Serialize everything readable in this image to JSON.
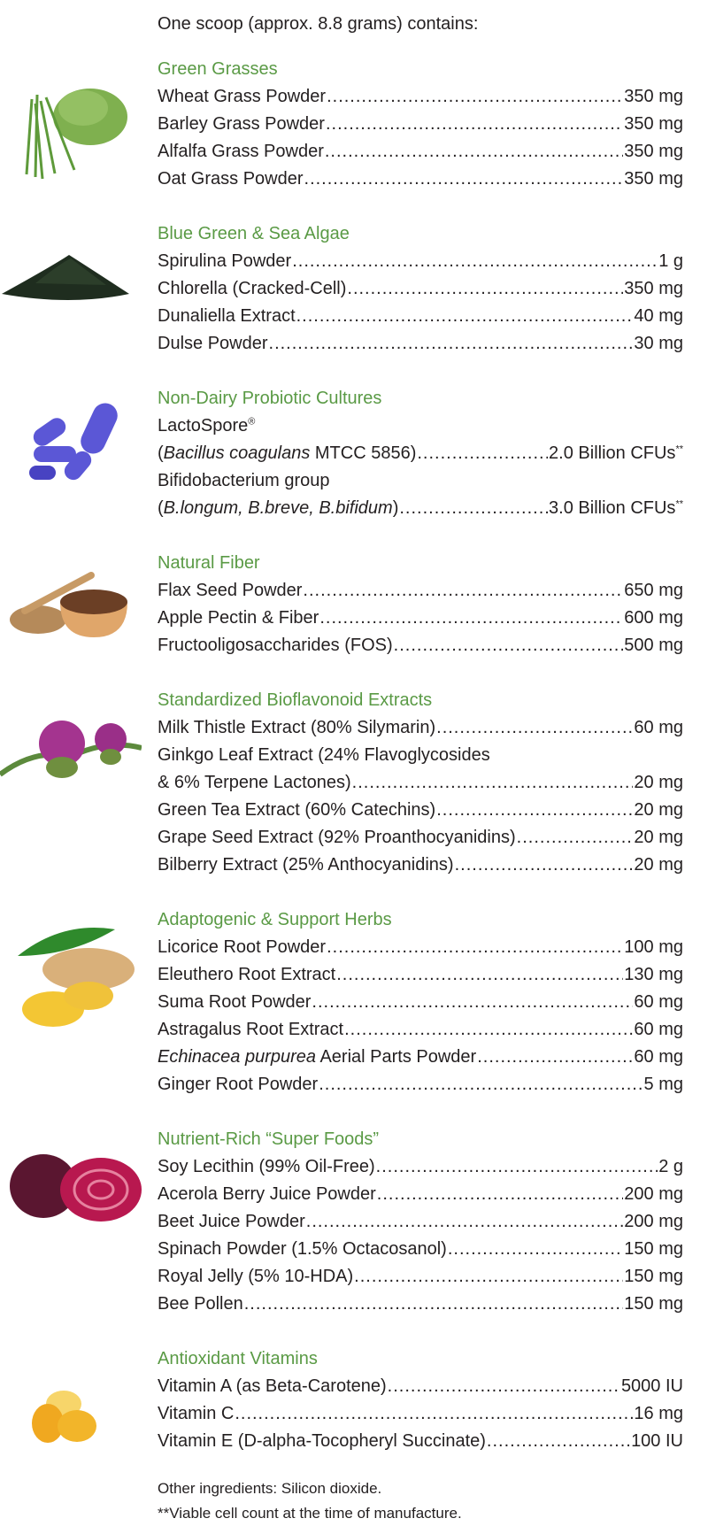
{
  "intro": "One scoop (approx. 8.8 grams) contains:",
  "colors": {
    "heading": "#5a9a45",
    "text": "#231f20"
  },
  "sections": [
    {
      "title": "Green Grasses",
      "image": "wheatgrass-powder-image",
      "rows": [
        {
          "name": "Wheat Grass Powder",
          "value": "350 mg"
        },
        {
          "name": "Barley Grass Powder",
          "value": "350 mg"
        },
        {
          "name": "Alfalfa Grass Powder ",
          "value": "350 mg"
        },
        {
          "name": "Oat Grass Powder ",
          "value": "350 mg"
        }
      ]
    },
    {
      "title": "Blue Green & Sea Algae",
      "image": "algae-powder-image",
      "rows": [
        {
          "name": "Spirulina Powder",
          "value": "1 g"
        },
        {
          "name": "Chlorella (Cracked-Cell)",
          "value": "350 mg"
        },
        {
          "name": "Dunaliella Extract",
          "value": "40 mg"
        },
        {
          "name": "Dulse Powder ",
          "value": "30 mg"
        }
      ]
    },
    {
      "title": "Non-Dairy Probiotic Cultures",
      "image": "probiotic-bacteria-image",
      "rows": [
        {
          "name": "LactoSpore",
          "sup": "®",
          "value": ""
        },
        {
          "pre": "(",
          "italic": "Bacillus coagulans",
          "post": " MTCC 5856) ",
          "value": " 2.0 Billion CFUs",
          "value_sup": "**"
        },
        {
          "name": "Bifidobacterium group",
          "value": ""
        },
        {
          "pre": "(",
          "italic": "B.longum, B.breve, B.bifidum",
          "post": ") ",
          "value": "3.0 Billion CFUs",
          "value_sup": "**"
        }
      ]
    },
    {
      "title": "Natural Fiber",
      "image": "flax-seed-bowl-image",
      "rows": [
        {
          "name": "Flax Seed Powder",
          "value": "650 mg"
        },
        {
          "name": "Apple Pectin & Fiber ",
          "value": "600 mg"
        },
        {
          "name": "Fructooligosaccharides (FOS)",
          "value": "500 mg"
        }
      ]
    },
    {
      "title": "Standardized Bioflavonoid Extracts",
      "image": "milk-thistle-flower-image",
      "rows": [
        {
          "name": "Milk Thistle Extract (80% Silymarin)",
          "value": "60 mg"
        },
        {
          "name": "Ginkgo Leaf Extract (24% Flavoglycosides",
          "value": ""
        },
        {
          "name": "& 6% Terpene Lactones)",
          "value": "20 mg"
        },
        {
          "name": "Green Tea Extract (60% Catechins) ",
          "value": "20 mg"
        },
        {
          "name": "Grape Seed Extract (92% Proanthocyanidins)",
          "value": "20 mg"
        },
        {
          "name": "Bilberry Extract (25% Anthocyanidins)",
          "value": "20 mg"
        }
      ]
    },
    {
      "title": "Adaptogenic & Support Herbs",
      "image": "ginger-root-image",
      "rows": [
        {
          "name": "Licorice Root Powder ",
          "value": "100 mg"
        },
        {
          "name": "Eleuthero Root Extract ",
          "value": "130 mg"
        },
        {
          "name": "Suma Root Powder",
          "value": "60 mg"
        },
        {
          "name": "Astragalus Root Extract ",
          "value": "60 mg"
        },
        {
          "italic": "Echinacea purpurea",
          "post": " Aerial Parts Powder ",
          "value": "60 mg"
        },
        {
          "name": "Ginger Root Powder",
          "value": "5 mg"
        }
      ]
    },
    {
      "title": "Nutrient-Rich “Super Foods”",
      "image": "beetroot-image",
      "rows": [
        {
          "name": "Soy Lecithin (99% Oil-Free) ",
          "value": "2 g"
        },
        {
          "name": "Acerola Berry Juice Powder ",
          "value": "200 mg"
        },
        {
          "name": "Beet Juice Powder",
          "value": "200 mg"
        },
        {
          "name": "Spinach Powder (1.5% Octacosanol)",
          "value": "150 mg"
        },
        {
          "name": "Royal Jelly (5% 10-HDA)",
          "value": "150 mg"
        },
        {
          "name": "Bee Pollen ",
          "value": "150 mg"
        }
      ]
    },
    {
      "title": "Antioxidant Vitamins",
      "image": "softgel-capsules-image",
      "rows": [
        {
          "name": "Vitamin A (as Beta-Carotene) ",
          "value": "5000 IU"
        },
        {
          "name": "Vitamin C",
          "value": "16 mg"
        },
        {
          "name": "Vitamin E (D-alpha-Tocopheryl Succinate)",
          "value": "100 IU"
        }
      ]
    }
  ],
  "footer": {
    "other": "Other ingredients: Silicon dioxide.",
    "note": "**Viable cell count at the time of manufacture."
  }
}
